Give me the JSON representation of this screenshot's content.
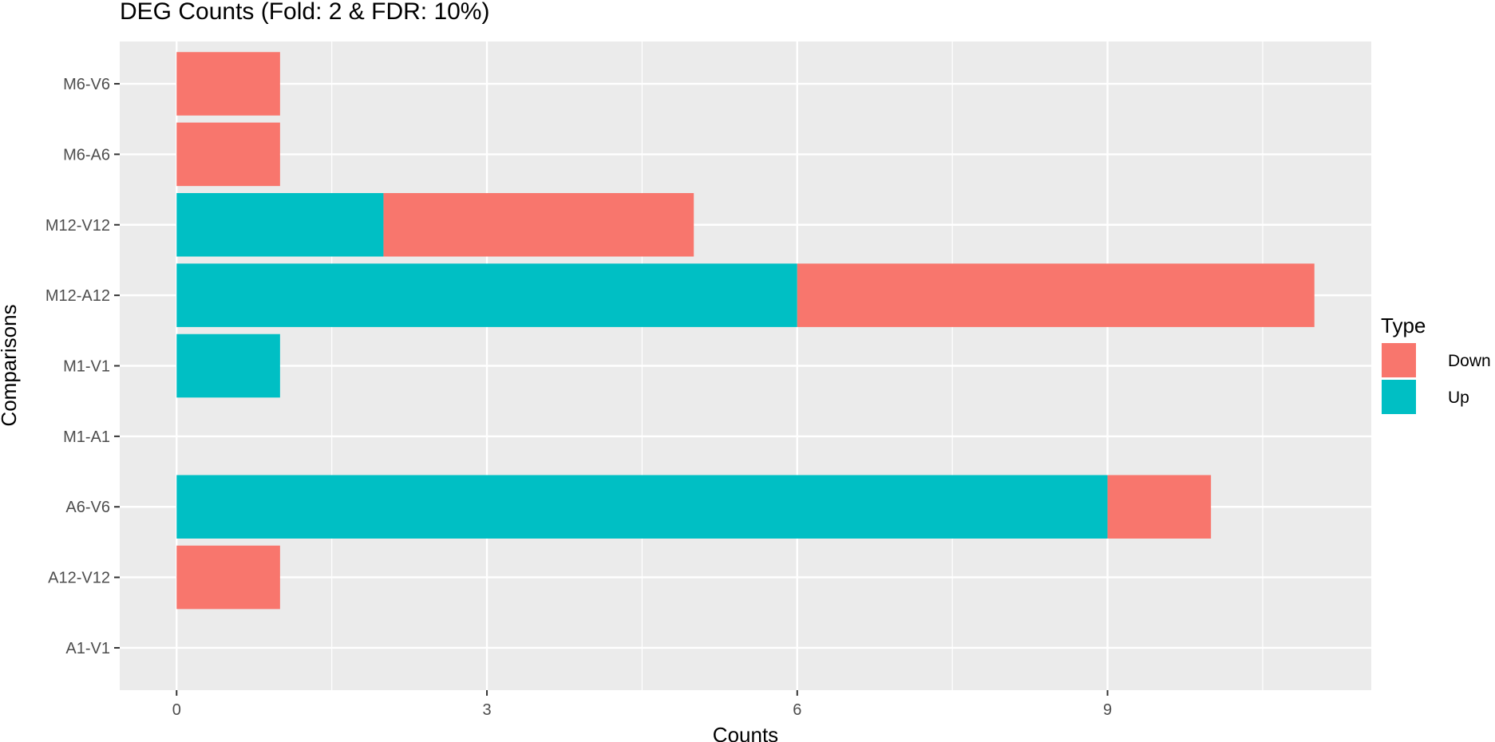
{
  "chart_data": {
    "type": "bar",
    "orientation": "horizontal",
    "stacked": true,
    "title": "DEG Counts (Fold: 2 & FDR: 10%)",
    "xlabel": "Counts",
    "ylabel": "Comparisons",
    "categories": [
      "A1-V1",
      "A12-V12",
      "A6-V6",
      "M1-A1",
      "M1-V1",
      "M12-A12",
      "M12-V12",
      "M6-A6",
      "M6-V6"
    ],
    "series": [
      {
        "name": "Up",
        "color": "#00BFC4",
        "values": [
          0,
          0,
          9,
          0,
          1,
          6,
          2,
          0,
          0
        ]
      },
      {
        "name": "Down",
        "color": "#F8766D",
        "values": [
          0,
          1,
          1,
          0,
          0,
          5,
          3,
          1,
          1
        ]
      }
    ],
    "xlim": [
      -0.55,
      11.55
    ],
    "x_ticks": [
      0,
      3,
      6,
      9
    ],
    "x_tick_labels": [
      "0",
      "3",
      "6",
      "9"
    ],
    "x_minor_ticks": [
      1.5,
      4.5,
      7.5,
      10.5
    ],
    "grid": true,
    "legend": {
      "title": "Type",
      "position": "right",
      "entries": [
        {
          "label": "Down",
          "color": "#F8766D"
        },
        {
          "label": "Up",
          "color": "#00BFC4"
        }
      ]
    }
  }
}
